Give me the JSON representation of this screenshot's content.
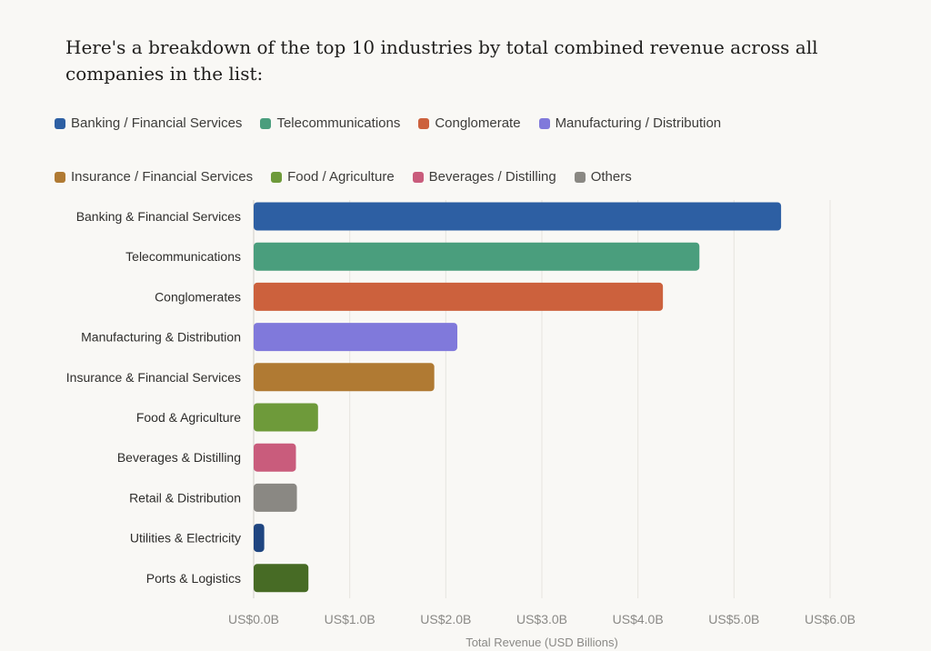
{
  "intro": "Here's a breakdown of the top 10 industries by total combined revenue across all companies in the list:",
  "chart_data": {
    "type": "bar",
    "orientation": "horizontal",
    "title": "",
    "xlabel": "Total Revenue (USD Billions)",
    "ylabel": "",
    "xlim": [
      0,
      6
    ],
    "xticks": [
      0,
      1,
      2,
      3,
      4,
      5,
      6
    ],
    "xtick_labels": [
      "US$0.0B",
      "US$1.0B",
      "US$2.0B",
      "US$3.0B",
      "US$4.0B",
      "US$5.0B",
      "US$6.0B"
    ],
    "grid": true,
    "legend_position": "top",
    "legend": [
      {
        "label": "Banking / Financial Services",
        "color": "#2d5fa3"
      },
      {
        "label": "Telecommunications",
        "color": "#4a9e7d"
      },
      {
        "label": "Conglomerate",
        "color": "#cc613d"
      },
      {
        "label": "Manufacturing / Distribution",
        "color": "#8079db"
      },
      {
        "label": "Insurance / Financial Services",
        "color": "#b07a33"
      },
      {
        "label": "Food / Agriculture",
        "color": "#6e9a3a"
      },
      {
        "label": "Beverages / Distilling",
        "color": "#c95c7c"
      },
      {
        "label": "Others",
        "color": "#8a8883"
      }
    ],
    "categories": [
      "Banking & Financial Services",
      "Telecommunications",
      "Conglomerates",
      "Manufacturing & Distribution",
      "Insurance & Financial Services",
      "Food & Agriculture",
      "Beverages & Distilling",
      "Retail & Distribution",
      "Utilities & Electricity",
      "Ports & Logistics"
    ],
    "values": [
      5.49,
      4.64,
      4.26,
      2.12,
      1.88,
      0.67,
      0.44,
      0.45,
      0.11,
      0.57
    ],
    "colors": [
      "#2d5fa3",
      "#4a9e7d",
      "#cc613d",
      "#8079db",
      "#b07a33",
      "#6e9a3a",
      "#c95c7c",
      "#8a8883",
      "#1f4580",
      "#476b25"
    ]
  }
}
